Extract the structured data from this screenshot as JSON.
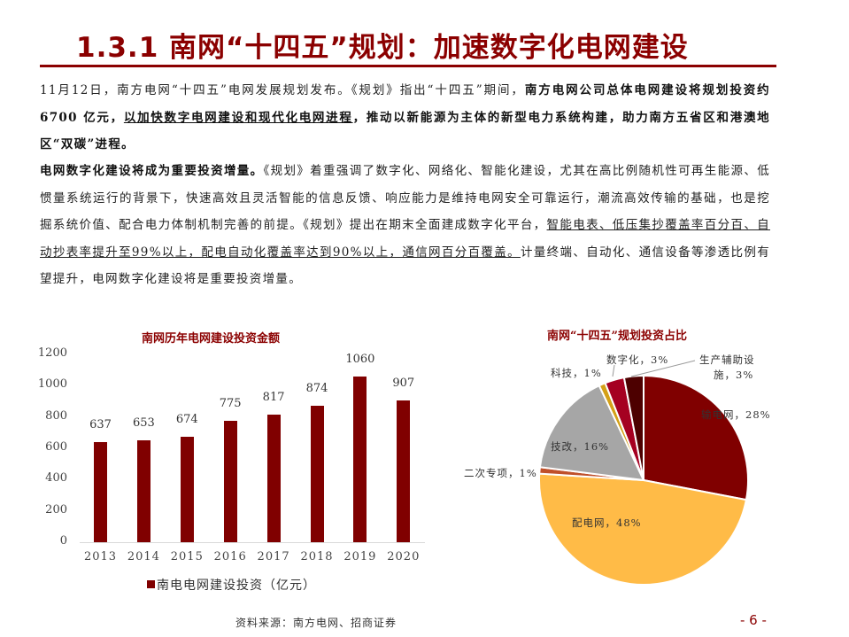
{
  "header": {
    "title": "1.3.1 南网“十四五”规划：加速数字化电网建设"
  },
  "paragraphs": {
    "p1": {
      "s1": "11月12日，南方电网“十四五”电网发展规划发布。《规划》指出“十四五”期间，",
      "s2_bold": "南方电网公司总体电网建设将规划投资约 6700 亿元，",
      "s3_bold_underline": "以加快数字电网建设和现代化电网进程",
      "s4_bold": "，推动以新能源为主体的新型电力系统构建，助力南方五省区和港澳地区“双碳”进程。"
    },
    "p2": {
      "s1_bold": "电网数字化建设将成为重要投资增量。",
      "s2": "《规划》着重强调了数字化、网络化、智能化建设，尤其在高比例随机性可再生能源、低惯量系统运行的背景下，快速高效且灵活智能的信息反馈、响应能力是维持电网安全可靠运行，潮流高效传输的基础，也是挖掘系统价值、配合电力体制机制完善的前提。《规划》提出在期末全面建成数字化平台，",
      "s3_underline": "智能电表、低压集抄覆盖率百分百、自动抄表率提升至99%以上，配电自动化覆盖率达到90%以上，通信网百分百覆盖。",
      "s4": "计量终端、自动化、通信设备等渗透比例有望提升，电网数字化建设将是重要投资增量。"
    }
  },
  "chart_data": [
    {
      "type": "bar",
      "title": "南网历年电网建设投资金额",
      "categories": [
        "2013",
        "2014",
        "2015",
        "2016",
        "2017",
        "2018",
        "2019",
        "2020"
      ],
      "series": [
        {
          "name": "南电电网建设投资（亿元）",
          "values": [
            637,
            653,
            674,
            775,
            817,
            874,
            1060,
            907
          ],
          "color": "#800000"
        }
      ],
      "yticks": [
        "0",
        "200",
        "400",
        "600",
        "800",
        "1000",
        "1200"
      ],
      "ylim": [
        0,
        1200
      ],
      "xlabel": "",
      "ylabel": "",
      "grid": false,
      "legend_position": "bottom",
      "data_labels": true
    },
    {
      "type": "pie",
      "title": "南网“十四五”规划投资占比",
      "slices": [
        {
          "label": "输电网",
          "value": 28,
          "display": "输电网，28%",
          "color": "#800000"
        },
        {
          "label": "配电网",
          "value": 48,
          "display": "配电网，48%",
          "color": "#ffbb47"
        },
        {
          "label": "二次专项",
          "value": 1,
          "display": "二次专项，1%",
          "color": "#c0502a"
        },
        {
          "label": "技改",
          "value": 16,
          "display": "技改，16%",
          "color": "#a6a6a6"
        },
        {
          "label": "科技",
          "value": 1,
          "display": "科技，1%",
          "color": "#d4a017"
        },
        {
          "label": "数字化",
          "value": 3,
          "display": "数字化，3%",
          "color": "#a50021"
        },
        {
          "label": "生产辅助设施",
          "value": 3,
          "display_line1": "生产辅助设",
          "display_line2": "施，3%",
          "color": "#4d0000"
        }
      ],
      "start_angle": "12 o'clock, clockwise"
    }
  ],
  "footer": {
    "source": "资料来源：南方电网、招商证券",
    "page": "- 6 -"
  }
}
